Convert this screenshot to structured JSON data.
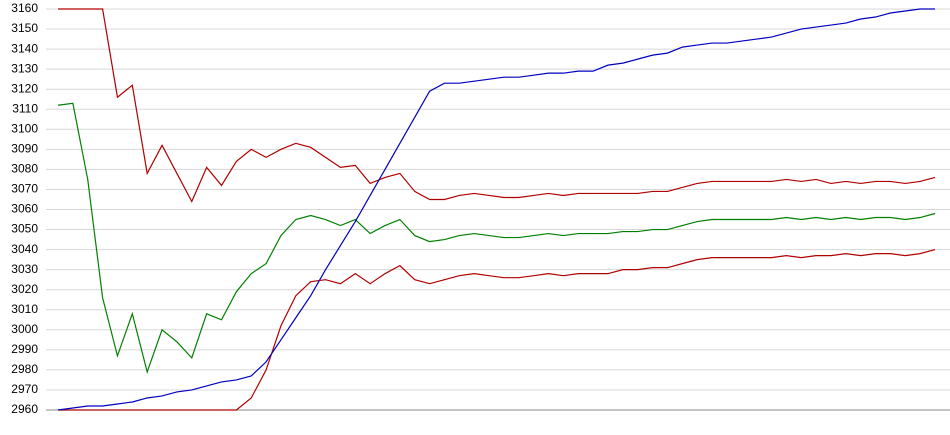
{
  "chart_data": {
    "type": "line",
    "grid": true,
    "ylim": [
      2960,
      3160
    ],
    "yticks": [
      2960,
      2970,
      2980,
      2990,
      3000,
      3010,
      3020,
      3030,
      3040,
      3050,
      3060,
      3070,
      3080,
      3090,
      3100,
      3110,
      3120,
      3130,
      3140,
      3150,
      3160
    ],
    "series": [
      {
        "color": "#b00000",
        "values": [
          3160,
          3160,
          3160,
          3160,
          3116,
          3122,
          3078,
          3092,
          3078,
          3064,
          3081,
          3072,
          3084,
          3090,
          3086,
          3090,
          3093,
          3091,
          3086,
          3081,
          3082,
          3073,
          3076,
          3078,
          3069,
          3065,
          3065,
          3067,
          3068,
          3067,
          3066,
          3066,
          3067,
          3068,
          3067,
          3068,
          3068,
          3068,
          3068,
          3068,
          3069,
          3069,
          3071,
          3073,
          3074,
          3074,
          3074,
          3074,
          3074,
          3075,
          3074,
          3075,
          3073,
          3074,
          3073,
          3074,
          3074,
          3073,
          3074,
          3076
        ]
      },
      {
        "color": "#008000",
        "values": [
          3112,
          3113,
          3075,
          3016,
          2987,
          3008,
          2979,
          3000,
          2994,
          2986,
          3008,
          3005,
          3019,
          3028,
          3033,
          3047,
          3055,
          3057,
          3055,
          3052,
          3055,
          3048,
          3052,
          3055,
          3047,
          3044,
          3045,
          3047,
          3048,
          3047,
          3046,
          3046,
          3047,
          3048,
          3047,
          3048,
          3048,
          3048,
          3049,
          3049,
          3050,
          3050,
          3052,
          3054,
          3055,
          3055,
          3055,
          3055,
          3055,
          3056,
          3055,
          3056,
          3055,
          3056,
          3055,
          3056,
          3056,
          3055,
          3056,
          3058
        ]
      },
      {
        "color": "#b00000",
        "values": [
          2960,
          2960,
          2960,
          2960,
          2960,
          2960,
          2960,
          2960,
          2960,
          2960,
          2960,
          2960,
          2960,
          2966,
          2980,
          3002,
          3017,
          3024,
          3025,
          3023,
          3028,
          3023,
          3028,
          3032,
          3025,
          3023,
          3025,
          3027,
          3028,
          3027,
          3026,
          3026,
          3027,
          3028,
          3027,
          3028,
          3028,
          3028,
          3030,
          3030,
          3031,
          3031,
          3033,
          3035,
          3036,
          3036,
          3036,
          3036,
          3036,
          3037,
          3036,
          3037,
          3037,
          3038,
          3037,
          3038,
          3038,
          3037,
          3038,
          3040
        ]
      },
      {
        "color": "#0000c0",
        "values": [
          2960,
          2961,
          2962,
          2962,
          2963,
          2964,
          2966,
          2967,
          2969,
          2970,
          2972,
          2974,
          2975,
          2977,
          2984,
          2995,
          3006,
          3017,
          3030,
          3042,
          3054,
          3067,
          3080,
          3093,
          3106,
          3119,
          3123,
          3123,
          3124,
          3125,
          3126,
          3126,
          3127,
          3128,
          3128,
          3129,
          3129,
          3132,
          3133,
          3135,
          3137,
          3138,
          3141,
          3142,
          3143,
          3143,
          3144,
          3145,
          3146,
          3148,
          3150,
          3151,
          3152,
          3153,
          3155,
          3156,
          3158,
          3159,
          3160,
          3160
        ]
      }
    ]
  }
}
